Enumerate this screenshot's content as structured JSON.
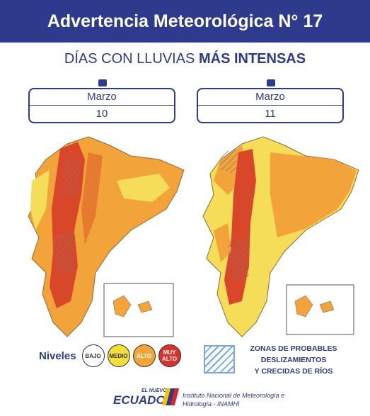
{
  "header": {
    "title": "Advertencia Meteorológica N° 17"
  },
  "subtitle": {
    "normal": "DÍAS CON LLUVIAS",
    "bold": "MÁS INTENSAS"
  },
  "days": [
    {
      "month": "Marzo",
      "day": "10"
    },
    {
      "month": "Marzo",
      "day": "11"
    }
  ],
  "legend": {
    "label": "Niveles",
    "levels": [
      {
        "label": "BAJO",
        "color": "#ffffff",
        "text_color": "#333333"
      },
      {
        "label": "MEDIO",
        "color": "#f5dd3a",
        "text_color": "#333333"
      },
      {
        "label": "ALTO",
        "color": "#f2a33a",
        "text_color": "#ffffff"
      },
      {
        "label": "MUY ALTO",
        "color": "#d9322b",
        "text_color": "#ffffff"
      }
    ]
  },
  "zones": {
    "lines": [
      "ZONAS DE PROBABLES",
      "DESLIZAMIENTOS",
      "Y CRECIDAS DE RÍOS"
    ]
  },
  "footer": {
    "logo_small": "EL NUEVO",
    "logo_big": "ECUADOR",
    "lines": [
      "Instituto Nacional de Meteorología e",
      "Hidrología - INAMHI"
    ]
  }
}
